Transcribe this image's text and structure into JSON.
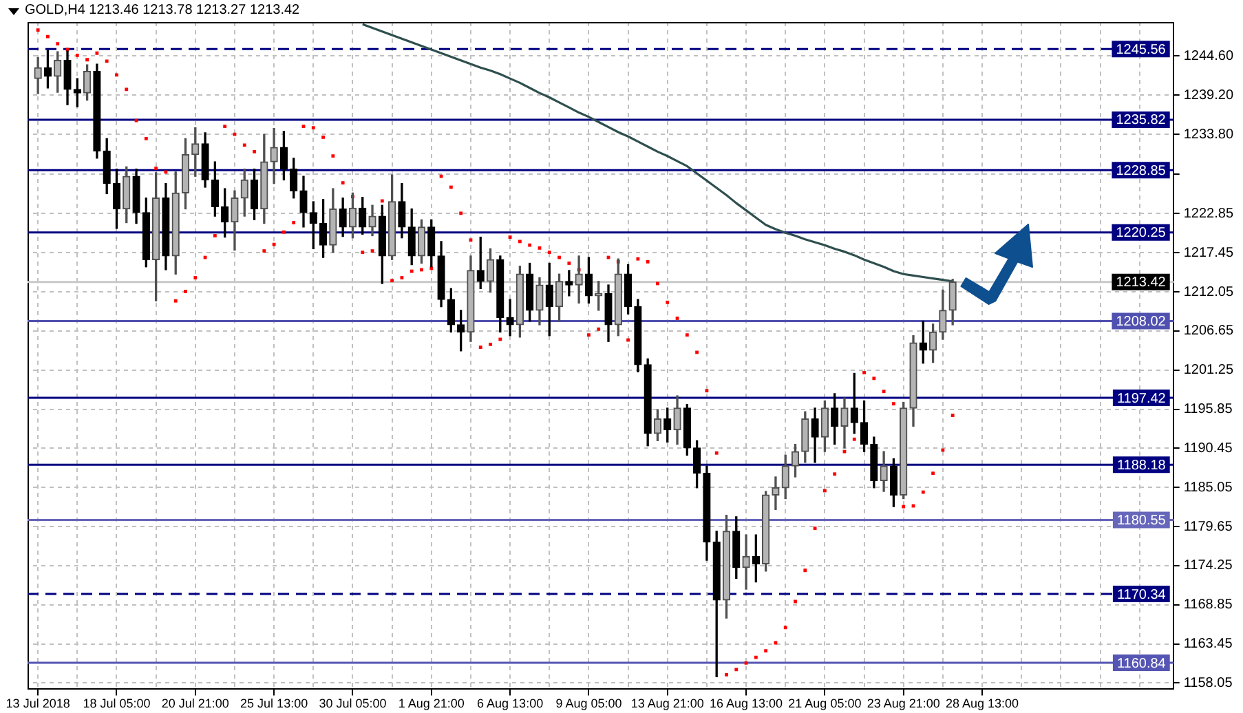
{
  "chart_data": {
    "type": "candlestick",
    "title": "GOLD,H4 1213.46 1213.78 1213.27 1213.42",
    "categories": [
      "13 Jul 2018",
      null,
      null,
      null,
      null,
      null,
      null,
      null,
      "18 Jul 05:00",
      null,
      null,
      null,
      null,
      null,
      null,
      null,
      "20 Jul 21:00",
      null,
      null,
      null,
      null,
      null,
      null,
      null,
      "25 Jul 13:00",
      null,
      null,
      null,
      null,
      null,
      null,
      null,
      "30 Jul 05:00",
      null,
      null,
      null,
      null,
      null,
      null,
      null,
      "1 Aug 21:00",
      null,
      null,
      null,
      null,
      null,
      null,
      null,
      "6 Aug 13:00",
      null,
      null,
      null,
      null,
      null,
      null,
      null,
      "9 Aug 05:00",
      null,
      null,
      null,
      null,
      null,
      null,
      null,
      "13 Aug 21:00",
      null,
      null,
      null,
      null,
      null,
      null,
      null,
      "16 Aug 13:00",
      null,
      null,
      null,
      null,
      null,
      null,
      null,
      "21 Aug 05:00",
      null,
      null,
      null,
      null,
      null,
      null,
      null,
      "23 Aug 21:00",
      null,
      null,
      null,
      null,
      null,
      null,
      null,
      "28 Aug 13:00",
      null,
      null,
      null,
      null,
      null,
      null,
      null,
      null,
      null,
      null,
      null,
      null,
      null,
      null,
      null,
      null,
      null,
      null,
      null
    ],
    "ohlc": [
      [
        1241.5,
        1244.4,
        1239.4,
        1243
      ],
      [
        1243,
        1245.4,
        1240.2,
        1241.8
      ],
      [
        1241.8,
        1245.2,
        1239.6,
        1244
      ],
      [
        1244,
        1245.3,
        1237.9,
        1240
      ],
      [
        1240,
        1241.5,
        1237.6,
        1239.5
      ],
      [
        1239.5,
        1243.4,
        1238.5,
        1242.5
      ],
      [
        1242.5,
        1243.5,
        1230.5,
        1231.5
      ],
      [
        1231.5,
        1233.2,
        1225.6,
        1227
      ],
      [
        1227,
        1229,
        1220.8,
        1223.5
      ],
      [
        1223.5,
        1229.3,
        1221.6,
        1228
      ],
      [
        1228,
        1229,
        1221.5,
        1223
      ],
      [
        1223,
        1225,
        1215.5,
        1216.5
      ],
      [
        1216.5,
        1228.5,
        1210.8,
        1225
      ],
      [
        1225,
        1227,
        1215.1,
        1217
      ],
      [
        1217,
        1228.6,
        1214.5,
        1225.7
      ],
      [
        1225.7,
        1233.2,
        1223.5,
        1231
      ],
      [
        1231,
        1234.7,
        1228,
        1232.5
      ],
      [
        1232.5,
        1234,
        1226.5,
        1227.5
      ],
      [
        1227.5,
        1230,
        1222.5,
        1223.8
      ],
      [
        1223.8,
        1226.3,
        1219.6,
        1221.7
      ],
      [
        1221.7,
        1226,
        1217.8,
        1225
      ],
      [
        1225,
        1229,
        1222.5,
        1227.5
      ],
      [
        1227.5,
        1229,
        1222,
        1223.5
      ],
      [
        1223.5,
        1233.8,
        1221.5,
        1230
      ],
      [
        1230,
        1234.6,
        1227,
        1232
      ],
      [
        1232,
        1234.2,
        1227.5,
        1229
      ],
      [
        1229,
        1230.5,
        1225,
        1226
      ],
      [
        1226,
        1228,
        1221,
        1223
      ],
      [
        1223,
        1224.5,
        1218,
        1221.5
      ],
      [
        1221.5,
        1224.8,
        1216.8,
        1218.5
      ],
      [
        1218.5,
        1226.3,
        1217.5,
        1223.5
      ],
      [
        1223.5,
        1225,
        1219.7,
        1221
      ],
      [
        1221,
        1225.7,
        1219.5,
        1223.6
      ],
      [
        1223.6,
        1225.1,
        1220,
        1221
      ],
      [
        1221,
        1224,
        1219.8,
        1222.5
      ],
      [
        1222.5,
        1224,
        1213.2,
        1217
      ],
      [
        1217,
        1228.2,
        1216.5,
        1224.5
      ],
      [
        1224.5,
        1227,
        1219.5,
        1221
      ],
      [
        1221,
        1223.5,
        1215.8,
        1217
      ],
      [
        1217,
        1222,
        1216,
        1221
      ],
      [
        1221,
        1222,
        1215.5,
        1217
      ],
      [
        1217,
        1219,
        1210,
        1211
      ],
      [
        1211,
        1212.5,
        1206.5,
        1207.5
      ],
      [
        1207.5,
        1209.5,
        1203.9,
        1206.5
      ],
      [
        1206.5,
        1217,
        1205.2,
        1215
      ],
      [
        1215,
        1219.6,
        1212.5,
        1213.5
      ],
      [
        1213.5,
        1218,
        1212,
        1216.5
      ],
      [
        1216.5,
        1217,
        1206.5,
        1208.5
      ],
      [
        1208.5,
        1211,
        1206,
        1207.5
      ],
      [
        1207.5,
        1215.6,
        1205.8,
        1214.5
      ],
      [
        1214.5,
        1216,
        1208,
        1209.5
      ],
      [
        1209.5,
        1214,
        1207.5,
        1213
      ],
      [
        1213,
        1216,
        1206,
        1210
      ],
      [
        1210,
        1214.5,
        1208,
        1213.5
      ],
      [
        1213.5,
        1215,
        1211.5,
        1213
      ],
      [
        1213,
        1217,
        1210.5,
        1214.5
      ],
      [
        1214.5,
        1216.8,
        1210.5,
        1211.5
      ],
      [
        1211.5,
        1213.5,
        1209.5,
        1211.8
      ],
      [
        1211.8,
        1213,
        1205.2,
        1207.5
      ],
      [
        1207.5,
        1216.6,
        1206,
        1214.5
      ],
      [
        1214.5,
        1215.8,
        1209,
        1210
      ],
      [
        1210,
        1211,
        1201,
        1202
      ],
      [
        1202,
        1202.8,
        1190.8,
        1192.5
      ],
      [
        1192.5,
        1195.8,
        1191.5,
        1194.5
      ],
      [
        1194.5,
        1196,
        1191.3,
        1193
      ],
      [
        1193,
        1197.7,
        1191,
        1196
      ],
      [
        1196,
        1196.5,
        1189.5,
        1190.5
      ],
      [
        1190.5,
        1191.5,
        1185,
        1187
      ],
      [
        1187,
        1188,
        1175,
        1177.5
      ],
      [
        1177.5,
        1179,
        1158.9,
        1169.5
      ],
      [
        1169.5,
        1181.2,
        1167,
        1179
      ],
      [
        1179,
        1181,
        1172.5,
        1174
      ],
      [
        1174,
        1178.5,
        1171,
        1175.5
      ],
      [
        1175.5,
        1178.5,
        1172,
        1174.5
      ],
      [
        1174.5,
        1184.5,
        1173.5,
        1184
      ],
      [
        1184,
        1186.5,
        1182,
        1185
      ],
      [
        1185,
        1189.5,
        1183.5,
        1188
      ],
      [
        1188,
        1191,
        1186.5,
        1190
      ],
      [
        1190,
        1195.5,
        1188.5,
        1194.5
      ],
      [
        1194.5,
        1196,
        1188.5,
        1192
      ],
      [
        1192,
        1197,
        1190,
        1196
      ],
      [
        1196,
        1198,
        1191,
        1193.5
      ],
      [
        1193.5,
        1197.4,
        1190.5,
        1196
      ],
      [
        1196,
        1200.8,
        1192.5,
        1194
      ],
      [
        1194,
        1197,
        1190,
        1191
      ],
      [
        1191,
        1192,
        1185,
        1186
      ],
      [
        1186,
        1190,
        1184.5,
        1188
      ],
      [
        1188,
        1189,
        1182.4,
        1184
      ],
      [
        1184,
        1196.8,
        1183.5,
        1196
      ],
      [
        1196,
        1206,
        1193.5,
        1205
      ],
      [
        1205,
        1208,
        1202.2,
        1204
      ],
      [
        1204,
        1207.6,
        1202.3,
        1206.5
      ],
      [
        1206.5,
        1212.3,
        1205.5,
        1209.5
      ],
      [
        1209.5,
        1213.78,
        1207.5,
        1213.42
      ],
      null,
      null,
      null,
      null,
      null,
      null,
      null,
      null,
      null,
      null,
      null,
      null,
      null,
      null,
      null,
      null,
      null,
      null,
      null,
      null,
      null,
      null
    ],
    "series": [
      {
        "type": "line",
        "color": "#2f4f4f",
        "values": [
          null,
          null,
          null,
          null,
          null,
          null,
          null,
          null,
          null,
          null,
          null,
          null,
          null,
          null,
          null,
          null,
          null,
          null,
          null,
          null,
          null,
          null,
          null,
          null,
          null,
          null,
          null,
          null,
          null,
          null,
          null,
          null,
          null,
          1249.0,
          1248.5,
          1248.0,
          1247.5,
          1247.0,
          1246.5,
          1246.0,
          1245.5,
          1245.0,
          1244.5,
          1244.0,
          1243.5,
          1243.0,
          1242.6,
          1242.1,
          1241.5,
          1240.9,
          1240.2,
          1239.5,
          1238.9,
          1238.2,
          1237.5,
          1236.8,
          1236.2,
          1235.5,
          1234.8,
          1234.1,
          1233.5,
          1232.8,
          1232.1,
          1231.4,
          1230.8,
          1230.1,
          1229.4,
          1228.4,
          1227.4,
          1226.4,
          1225.4,
          1224.3,
          1223.3,
          1222.3,
          1221.3,
          1220.7,
          1220.2,
          1219.8,
          1219.3,
          1218.9,
          1218.5,
          1218.0,
          1217.6,
          1217.1,
          1216.5,
          1216.0,
          1215.5,
          1214.9,
          1214.5,
          1214.3,
          1214.1,
          1213.9,
          1213.7,
          1213.5,
          null,
          null,
          null,
          null,
          null,
          null,
          null,
          null,
          null,
          null,
          null,
          null,
          null,
          null,
          null,
          null,
          null,
          null,
          null,
          null,
          null,
          null
        ]
      },
      {
        "type": "scatter",
        "color": "#ff0000",
        "marker": "square",
        "values": [
          1248.2,
          1247.3,
          1246.3,
          1245.5,
          1244.7,
          1244.1,
          1245.0,
          1243.9,
          1242.0,
          1240.0,
          1235.7,
          1233.2,
          1229.1,
          1228.6,
          1210.8,
          1212.1,
          1214.0,
          1216.8,
          1219.8,
          1234.9,
          1233.8,
          1232.3,
          1231.4,
          1217.7,
          1218.6,
          1220.3,
          1221.6,
          1234.9,
          1234.7,
          1233.4,
          1230.8,
          1227.1,
          1225.2,
          1217.5,
          1217.7,
          1224.6,
          1213.6,
          1214.0,
          1214.9,
          1215.1,
          1215.3,
          1228.0,
          1226.5,
          1222.9,
          1219.2,
          1204.4,
          1204.8,
          1205.5,
          1219.6,
          1219.0,
          1218.5,
          1218.1,
          1217.5,
          1216.8,
          1216.0,
          1215.1,
          1206.1,
          1206.9,
          1216.8,
          1216.2,
          1205.4,
          1216.6,
          1216.2,
          1213.2,
          1210.6,
          1208.4,
          1206.1,
          1203.7,
          1198.4,
          1189.8,
          1159.2,
          1159.9,
          1160.8,
          1161.6,
          1162.5,
          1163.6,
          1165.7,
          1169.3,
          1173.6,
          1179.4,
          1184.6,
          1186.9,
          1190.0,
          1191.7,
          1200.9,
          1200.1,
          1198.3,
          1196.6,
          1182.4,
          1182.5,
          1184.4,
          1187.0,
          1190.2,
          1195.0,
          null,
          null,
          null,
          null,
          null,
          null,
          null,
          null,
          null,
          null,
          null,
          null,
          null,
          null,
          null,
          null,
          null,
          null,
          null,
          null,
          null,
          null
        ]
      }
    ],
    "ylim": [
      1157.1,
      1249.3
    ],
    "yticks": [
      {
        "value": 1244.6,
        "label": "1244.60"
      },
      {
        "value": 1239.2,
        "label": "1239.20"
      },
      {
        "value": 1233.8,
        "label": "1233.80"
      },
      {
        "value": 1228.3,
        "label": null
      },
      1222.85,
      1217.45,
      1212.05,
      1206.65,
      1201.25,
      1195.85,
      1190.45,
      1185.05,
      1179.65,
      1174.25,
      1168.85,
      1163.45,
      1158.05
    ],
    "ref_lines": [
      {
        "axis": "y",
        "value": 1245.56,
        "label": "1245.56",
        "color": "#000080",
        "line_style": "dashed"
      },
      {
        "axis": "y",
        "value": 1235.82,
        "label": "1235.82",
        "color": "#000080"
      },
      {
        "axis": "y",
        "value": 1228.85,
        "label": "1228.85",
        "color": "#000080"
      },
      {
        "axis": "y",
        "value": 1220.25,
        "label": "1220.25",
        "color": "#000080"
      },
      {
        "axis": "y",
        "value": 1213.42,
        "label": "1213.42",
        "color": "#c8c8c8"
      },
      {
        "axis": "y",
        "value": 1208.02,
        "label": "1208.02",
        "color": "#5050b0"
      },
      {
        "axis": "y",
        "value": 1197.42,
        "label": "1197.42",
        "color": "#000080"
      },
      {
        "axis": "y",
        "value": 1188.18,
        "label": "1188.18",
        "color": "#000080"
      },
      {
        "axis": "y",
        "value": 1180.55,
        "label": "1180.55",
        "color": "#6666bb"
      },
      {
        "axis": "y",
        "value": 1170.34,
        "label": "1170.34",
        "color": "#000080",
        "line_style": "dashed"
      },
      {
        "axis": "y",
        "value": 1160.84,
        "label": "1160.84",
        "color": "#5555b3"
      }
    ],
    "grid": true
  }
}
